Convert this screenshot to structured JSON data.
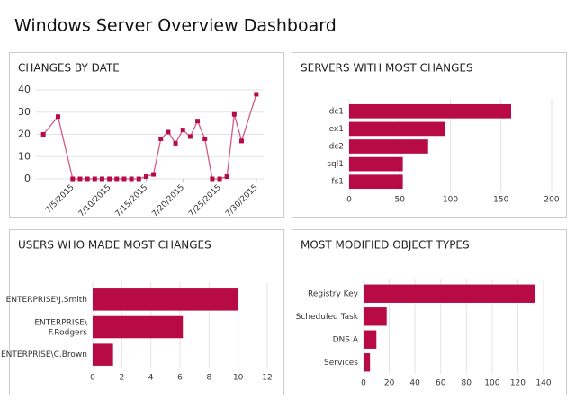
{
  "title": "Windows Server Overview Dashboard",
  "chart_data": [
    {
      "type": "line",
      "title": "CHANGES BY DATE",
      "color": "#b80b45",
      "x": [
        "7/1/2015",
        "7/3/2015",
        "7/5/2015",
        "7/6/2015",
        "7/7/2015",
        "7/8/2015",
        "7/9/2015",
        "7/10/2015",
        "7/11/2015",
        "7/12/2015",
        "7/13/2015",
        "7/14/2015",
        "7/15/2015",
        "7/16/2015",
        "7/17/2015",
        "7/18/2015",
        "7/19/2015",
        "7/20/2015",
        "7/21/2015",
        "7/22/2015",
        "7/23/2015",
        "7/24/2015",
        "7/25/2015",
        "7/26/2015",
        "7/27/2015",
        "7/28/2015",
        "7/30/2015"
      ],
      "values": [
        20,
        28,
        0,
        0,
        0,
        0,
        0,
        0,
        0,
        0,
        0,
        0,
        1,
        2,
        18,
        21,
        16,
        22,
        19,
        26,
        18,
        0,
        0,
        1,
        29,
        17,
        38
      ],
      "xlim": [
        "6/30/2015",
        "7/31/2015"
      ],
      "xticks": [
        "7/5/2015",
        "7/10/2015",
        "7/15/2015",
        "7/20/2015",
        "7/25/2015",
        "7/30/2015"
      ],
      "ylim": [
        0,
        40
      ],
      "yticks": [
        0,
        10,
        20,
        30,
        40
      ],
      "grid": true
    },
    {
      "type": "hbar",
      "title": "SERVERS WITH MOST CHANGES",
      "color": "#b80b45",
      "categories": [
        "dc1",
        "ex1",
        "dc2",
        "sql1",
        "fs1"
      ],
      "values": [
        160,
        95,
        78,
        53,
        53
      ],
      "xlim": [
        0,
        200
      ],
      "xticks": [
        0,
        50,
        100,
        150,
        200
      ],
      "grid": true
    },
    {
      "type": "hbar",
      "title": "USERS WHO MADE MOST CHANGES",
      "color": "#b80b45",
      "categories": [
        "ENTERPRISE\\J.Smith",
        "ENTERPRISE\\F.Rodgers",
        "ENTERPRISE\\C.Brown"
      ],
      "values": [
        10,
        6.2,
        1.4
      ],
      "xlim": [
        0,
        12
      ],
      "xticks": [
        0,
        2,
        4,
        6,
        8,
        10,
        12
      ],
      "grid": true
    },
    {
      "type": "hbar",
      "title": "MOST MODIFIED OBJECT TYPES",
      "color": "#b80b45",
      "categories": [
        "Registry Key",
        "Scheduled Task",
        "DNS A",
        "Services"
      ],
      "values": [
        133,
        18,
        10,
        5
      ],
      "xlim": [
        0,
        140
      ],
      "xticks": [
        0,
        20,
        40,
        60,
        80,
        100,
        120,
        140
      ],
      "grid": true
    }
  ]
}
